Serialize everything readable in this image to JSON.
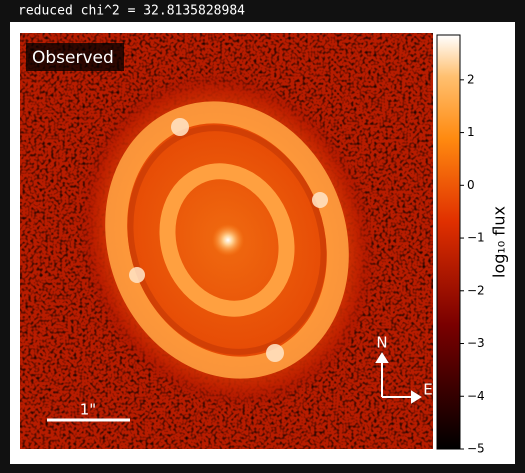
{
  "chart_data": {
    "type": "image",
    "title": "reduced chi^2 =  32.8135828984",
    "panel_label": "Observed",
    "scale_bar_label": "1\"",
    "compass": {
      "north": "N",
      "east": "E"
    },
    "colorbar_label": "log₁₀ flux",
    "clim": [
      -5,
      2.85
    ],
    "cticks": [
      {
        "value": -5,
        "label": "−5"
      },
      {
        "value": -4,
        "label": "−4"
      },
      {
        "value": -3,
        "label": "−3"
      },
      {
        "value": -2,
        "label": "−2"
      },
      {
        "value": -1,
        "label": "−1"
      },
      0,
      1,
      2
    ]
  }
}
